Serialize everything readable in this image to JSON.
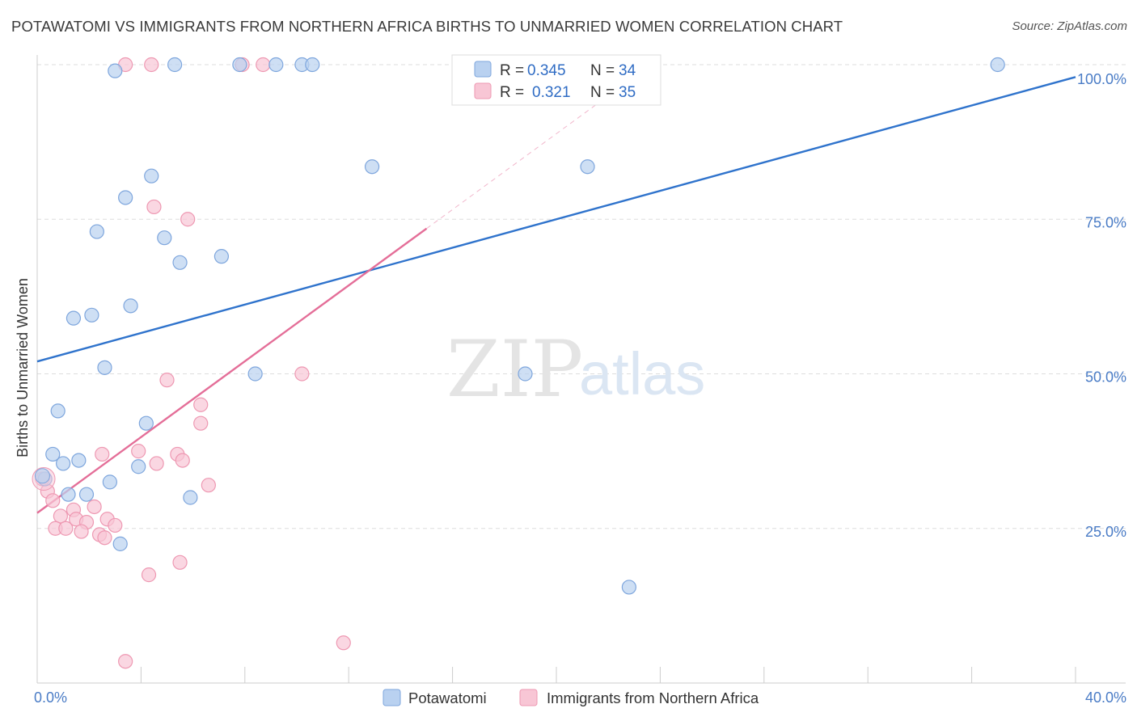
{
  "title": "POTAWATOMI VS IMMIGRANTS FROM NORTHERN AFRICA BIRTHS TO UNMARRIED WOMEN CORRELATION CHART",
  "source": "Source: ZipAtlas.com",
  "watermark": {
    "zip": "ZIP",
    "atlas": "atlas"
  },
  "colors": {
    "blue_fill": "#b9d1f0",
    "blue_stroke": "#7ea6dd",
    "blue_line": "#2f73cc",
    "pink_fill": "#f8c6d5",
    "pink_stroke": "#ee98b2",
    "pink_line": "#e46e98",
    "grid": "#dddddd",
    "tick_label": "#4a7cc6"
  },
  "legend": {
    "rows": [
      {
        "r_label": "R = ",
        "r_value": "0.345",
        "n_label": "N = ",
        "n_value": "34"
      },
      {
        "r_label": "R = ",
        "r_value": "0.321",
        "n_label": "N = ",
        "n_value": "35"
      }
    ]
  },
  "chart_data": {
    "type": "scatter",
    "title": "POTAWATOMI VS IMMIGRANTS FROM NORTHERN AFRICA BIRTHS TO UNMARRIED WOMEN CORRELATION CHART",
    "xlabel": "",
    "ylabel": "Births to Unmarried Women",
    "xlim": [
      0,
      40
    ],
    "ylim": [
      0,
      100
    ],
    "x_tick_labels": [
      "0.0%",
      "40.0%"
    ],
    "y_ticks": [
      25,
      50,
      75,
      100
    ],
    "y_tick_labels": [
      "25.0%",
      "50.0%",
      "75.0%",
      "100.0%"
    ],
    "grid": true,
    "legend_position": "top-center",
    "series": [
      {
        "name": "Potawatomi",
        "color": "#b9d1f0",
        "r": 0.345,
        "n": 34,
        "trend": {
          "x": [
            0,
            40
          ],
          "y": [
            52,
            98
          ]
        },
        "points": [
          [
            3.0,
            99
          ],
          [
            5.3,
            100
          ],
          [
            7.8,
            100
          ],
          [
            10.2,
            100
          ],
          [
            10.6,
            100
          ],
          [
            37.0,
            100
          ],
          [
            12.9,
            83.5
          ],
          [
            21.2,
            83.5
          ],
          [
            4.4,
            82
          ],
          [
            3.4,
            78.5
          ],
          [
            2.3,
            73
          ],
          [
            4.9,
            72
          ],
          [
            5.5,
            68
          ],
          [
            7.1,
            69
          ],
          [
            2.1,
            59.5
          ],
          [
            1.4,
            59
          ],
          [
            3.6,
            61
          ],
          [
            2.6,
            51
          ],
          [
            8.4,
            50
          ],
          [
            18.8,
            50
          ],
          [
            0.8,
            44
          ],
          [
            4.2,
            42
          ],
          [
            0.6,
            37
          ],
          [
            1.6,
            36
          ],
          [
            1.0,
            35.5
          ],
          [
            3.9,
            35
          ],
          [
            2.8,
            32.5
          ],
          [
            0.3,
            33
          ],
          [
            1.2,
            30.5
          ],
          [
            1.9,
            30.5
          ],
          [
            5.9,
            30
          ],
          [
            3.2,
            22.5
          ],
          [
            22.8,
            15.5
          ],
          [
            9.2,
            100
          ]
        ]
      },
      {
        "name": "Immigrants from Northern Africa",
        "color": "#f8c6d5",
        "r": 0.321,
        "n": 35,
        "trend": {
          "x": [
            0,
            15
          ],
          "y": [
            27.5,
            73.5
          ]
        },
        "points": [
          [
            3.4,
            100
          ],
          [
            4.4,
            100
          ],
          [
            7.9,
            100
          ],
          [
            8.7,
            100
          ],
          [
            4.5,
            77
          ],
          [
            5.8,
            75
          ],
          [
            5.0,
            49
          ],
          [
            10.2,
            50
          ],
          [
            6.3,
            45
          ],
          [
            6.3,
            42
          ],
          [
            3.9,
            37.5
          ],
          [
            2.5,
            37
          ],
          [
            5.4,
            37
          ],
          [
            4.6,
            35.5
          ],
          [
            5.6,
            36
          ],
          [
            6.6,
            32
          ],
          [
            0.2,
            33
          ],
          [
            0.4,
            31
          ],
          [
            0.6,
            29.5
          ],
          [
            1.4,
            28
          ],
          [
            2.2,
            28.5
          ],
          [
            0.9,
            27
          ],
          [
            1.5,
            26.5
          ],
          [
            2.7,
            26.5
          ],
          [
            1.9,
            26
          ],
          [
            3.0,
            25.5
          ],
          [
            0.7,
            25
          ],
          [
            1.1,
            25
          ],
          [
            2.4,
            24
          ],
          [
            1.7,
            24.5
          ],
          [
            2.6,
            23.5
          ],
          [
            5.5,
            19.5
          ],
          [
            4.3,
            17.5
          ],
          [
            11.8,
            6.5
          ],
          [
            3.4,
            3.5
          ]
        ]
      }
    ]
  }
}
